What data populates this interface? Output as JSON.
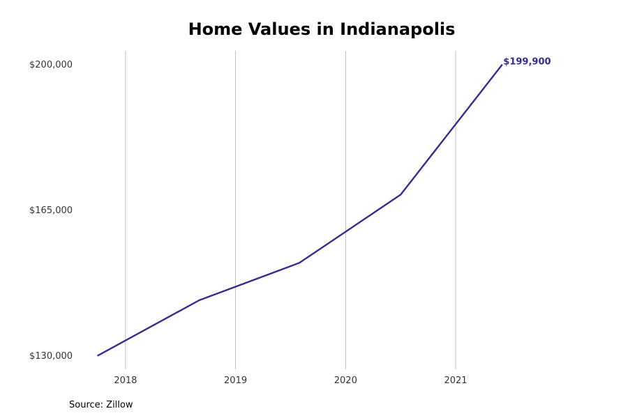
{
  "chart_data": {
    "type": "line",
    "title": "Home Values in Indianapolis",
    "xlabel": "",
    "ylabel": "",
    "x_ticks": [
      "2018",
      "2019",
      "2020",
      "2021"
    ],
    "y_ticks": [
      "$130,000",
      "$165,000",
      "$200,000"
    ],
    "xlim": [
      2017.5,
      2021.9
    ],
    "ylim": [
      126700,
      203300
    ],
    "grid": "vertical",
    "series": [
      {
        "color": "#332d8c",
        "x": [
          2017.75,
          2018.67,
          2019.58,
          2020.5,
          2021.42
        ],
        "y": [
          130000,
          143300,
          152300,
          168700,
          199900
        ]
      }
    ],
    "end_label": "$199,900",
    "source": "Source: Zillow"
  }
}
